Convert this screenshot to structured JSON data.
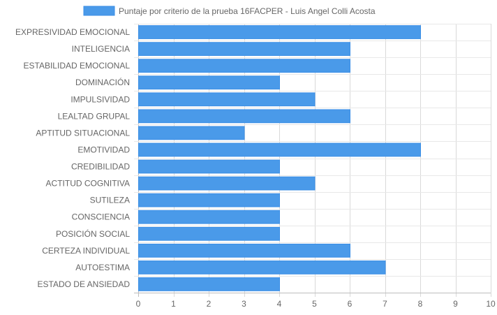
{
  "chart_data": {
    "type": "bar",
    "orientation": "horizontal",
    "categories": [
      "EXPRESIVIDAD EMOCIONAL",
      "INTELIGENCIA",
      "ESTABILIDAD EMOCIONAL",
      "DOMINACIÓN",
      "IMPULSIVIDAD",
      "LEALTAD GRUPAL",
      "APTITUD SITUACIONAL",
      "EMOTIVIDAD",
      "CREDIBILIDAD",
      "ACTITUD COGNITIVA",
      "SUTILEZA",
      "CONSCIENCIA",
      "POSICIÓN SOCIAL",
      "CERTEZA INDIVIDUAL",
      "AUTOESTIMA",
      "ESTADO DE ANSIEDAD"
    ],
    "series": [
      {
        "name": "Puntaje por criterio de la prueba 16FACPER - Luis Angel Colli Acosta",
        "values": [
          8,
          6,
          6,
          4,
          5,
          6,
          3,
          8,
          4,
          5,
          4,
          4,
          4,
          6,
          7,
          4
        ],
        "color": "#4a9ae9",
        "border_color": "#3a8ee6"
      }
    ],
    "x_ticks": [
      "0",
      "1",
      "2",
      "3",
      "4",
      "5",
      "6",
      "7",
      "8",
      "9",
      "10"
    ],
    "xlim": [
      0,
      10
    ],
    "grid": true,
    "legend_position": "top"
  }
}
